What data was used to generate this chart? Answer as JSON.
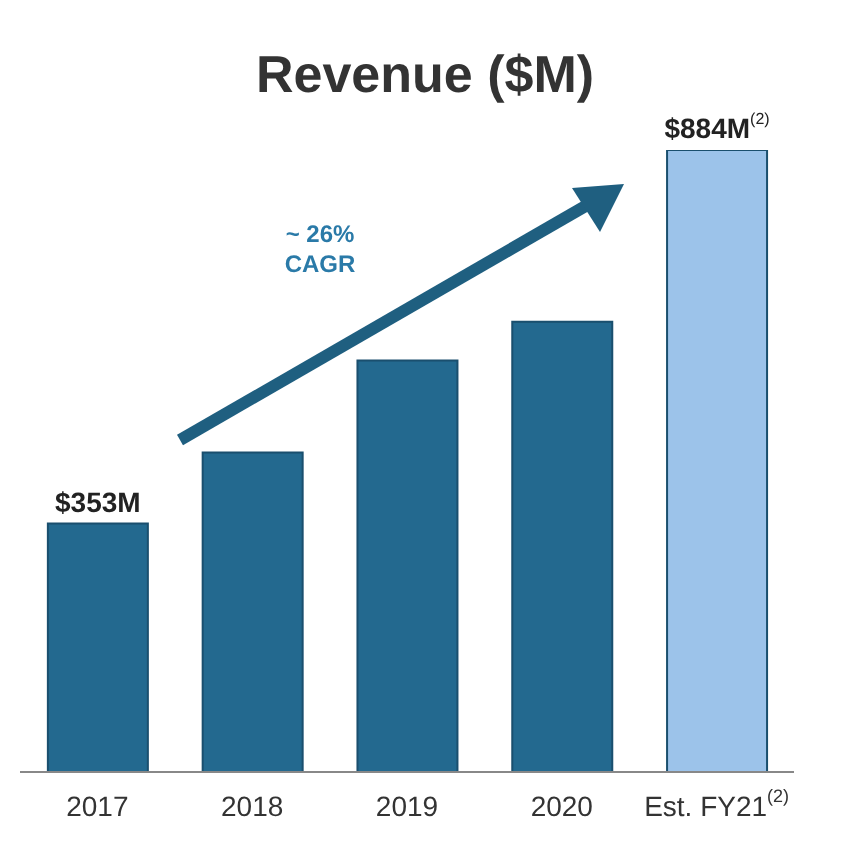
{
  "chart_data": {
    "type": "bar",
    "title": "Revenue ($M)",
    "categories": [
      "2017",
      "2018",
      "2019",
      "2020",
      "Est. FY21$^{(2)}$"
    ],
    "values": [
      353,
      454,
      585,
      640,
      884
    ],
    "colors": [
      "#23698f",
      "#23698f",
      "#23698f",
      "#23698f",
      "#9cc3ea"
    ],
    "value_labels": [
      "$353M",
      null,
      null,
      null,
      "$884M"
    ],
    "tick_labels": "x",
    "annotations": [
      "~ 26%",
      "CAGR",
      "(2)"
    ]
  }
}
